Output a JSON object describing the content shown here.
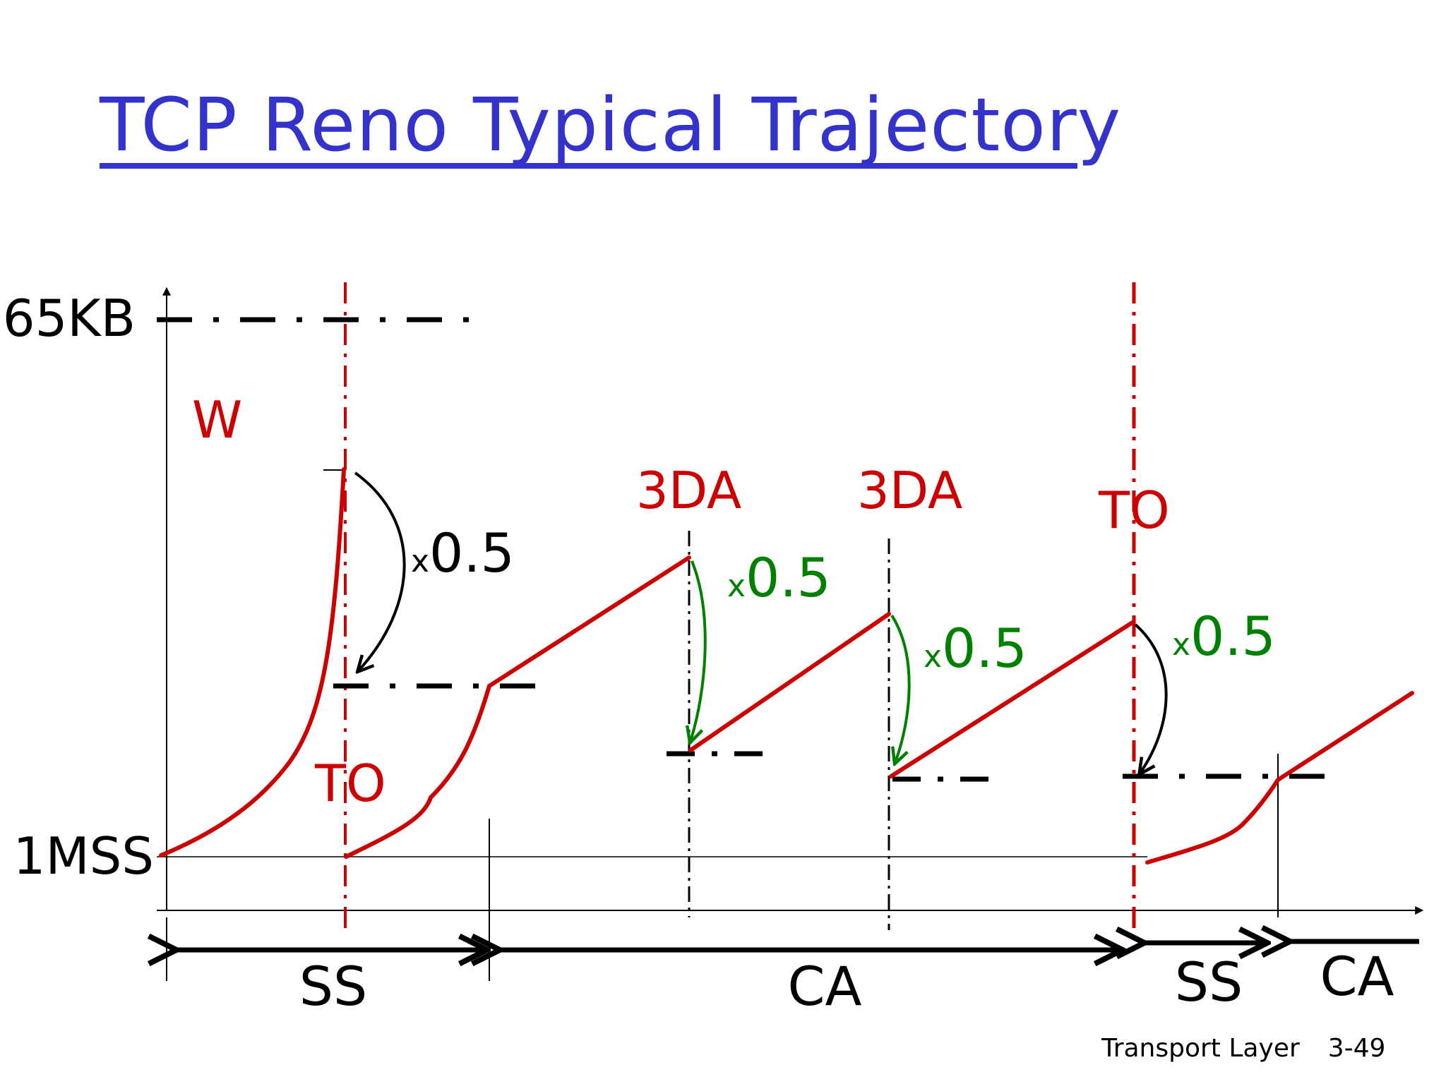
{
  "slide": {
    "title": "TCP Reno Typical Trajectory",
    "footer": {
      "section": "Transport Layer",
      "page": "3-49"
    }
  },
  "axis": {
    "y_top_label": "65KB",
    "y_bottom_label": "1MSS",
    "variable_label": "W"
  },
  "events": [
    {
      "label": "TO",
      "kind": "timeout"
    },
    {
      "label": "3DA",
      "kind": "triple-duplicate-ack"
    },
    {
      "label": "3DA",
      "kind": "triple-duplicate-ack"
    },
    {
      "label": "TO",
      "kind": "timeout"
    }
  ],
  "multipliers": [
    {
      "prefix": "x",
      "value": "0.5",
      "color": "#000000"
    },
    {
      "prefix": "x",
      "value": "0.5",
      "color": "#008000"
    },
    {
      "prefix": "x",
      "value": "0.5",
      "color": "#008000"
    },
    {
      "prefix": "x",
      "value": "0.5",
      "color": "#008000"
    }
  ],
  "phases": [
    {
      "label": "SS"
    },
    {
      "label": "CA"
    },
    {
      "label": "SS"
    },
    {
      "label": "CA"
    }
  ],
  "colors": {
    "title": "#3333cc",
    "window": "#cc0000",
    "event_line": "#cc0000",
    "threshold": "#000000",
    "halving_ack": "#008000",
    "halving_timeout": "#000000"
  }
}
